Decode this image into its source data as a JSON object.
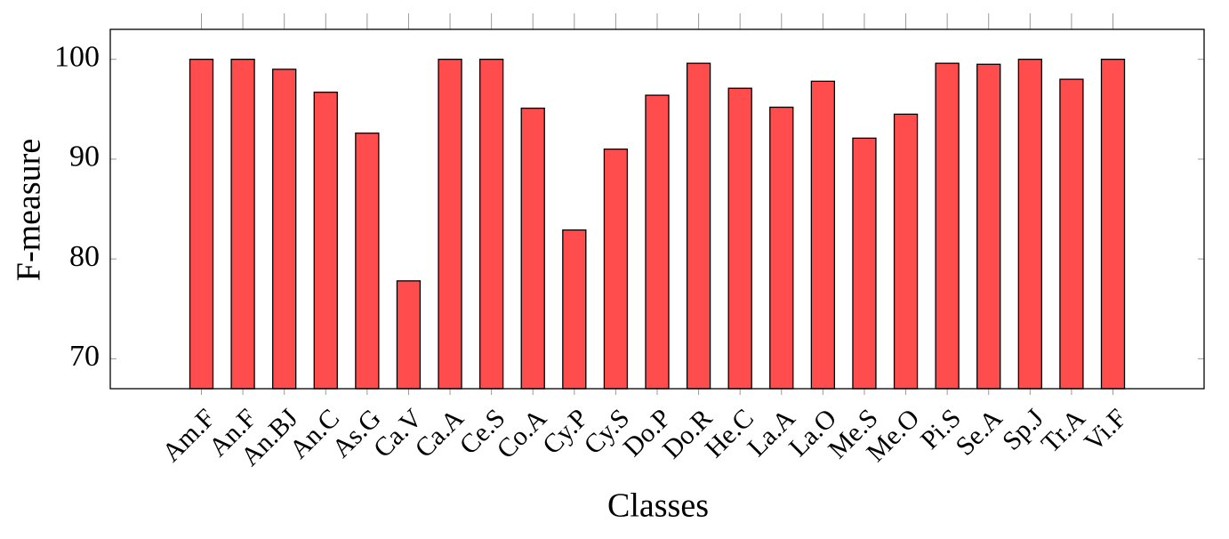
{
  "chart_data": {
    "type": "bar",
    "x_label": "Classes",
    "y_label": "F-measure",
    "categories": [
      "Am.F",
      "An.F",
      "An.BJ",
      "An.C",
      "As.G",
      "Ca.V",
      "Ca.A",
      "Ce.S",
      "Co.A",
      "Cy.P",
      "Cy.S",
      "Do.P",
      "Do.R",
      "He.C",
      "La.A",
      "La.O",
      "Me.S",
      "Me.O",
      "Pi.S",
      "Se.A",
      "Sp.J",
      "Tr.A",
      "Vi.F"
    ],
    "values": [
      100,
      100,
      99,
      96.7,
      92.6,
      77.8,
      100,
      100,
      95.1,
      82.9,
      91,
      96.4,
      99.6,
      97.1,
      95.2,
      97.8,
      92.1,
      94.5,
      99.6,
      99.5,
      100,
      98,
      100
    ],
    "color": "#ff4d4d",
    "ylim": [
      67,
      103
    ],
    "yticks": [
      70,
      80,
      90,
      100
    ],
    "grid": false
  }
}
